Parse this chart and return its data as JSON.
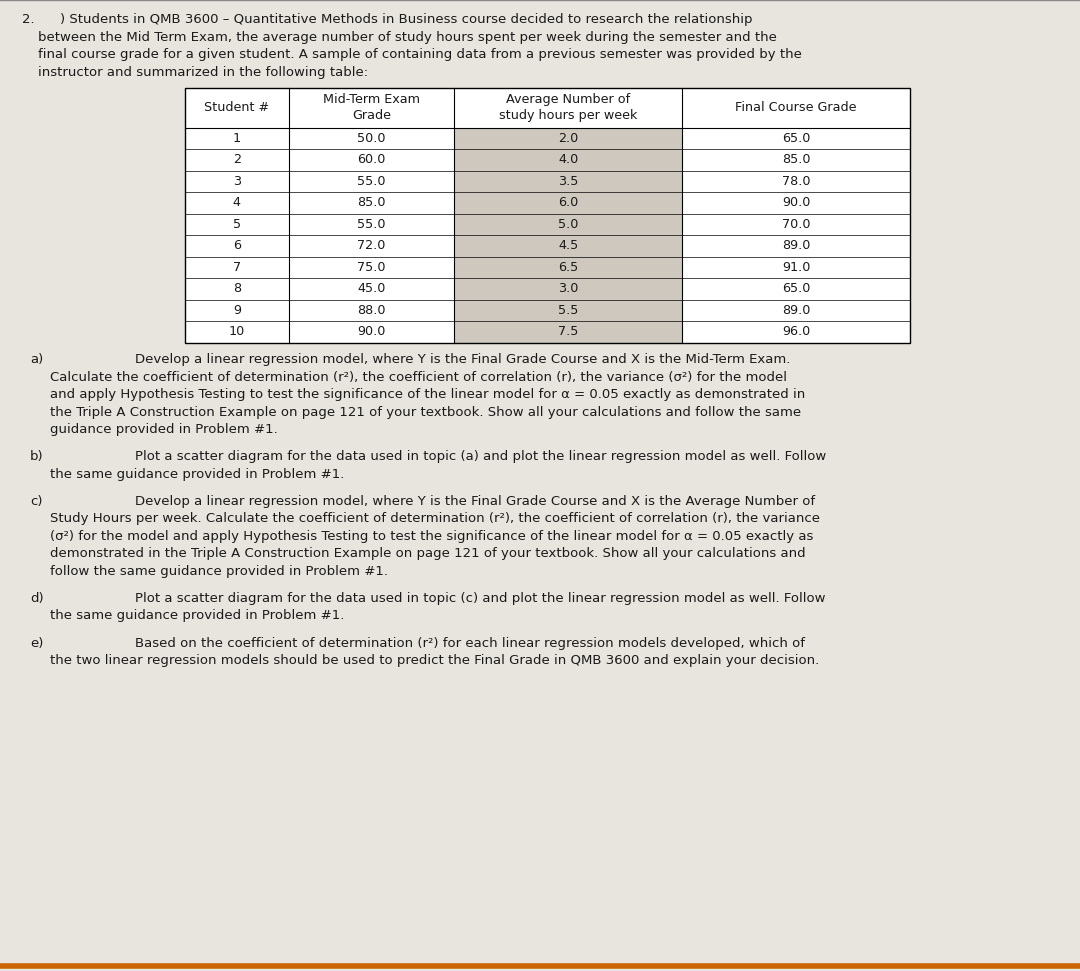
{
  "problem_number": "2.",
  "intro_line1": ") Students in QMB 3600 – Quantitative Methods in Business course decided to research the relationship",
  "intro_lines": [
    "between the Mid Term Exam, the average number of study hours spent per week during the semester and the",
    "final course grade for a given student. A sample of containing data from a previous semester was provided by the",
    "instructor and summarized in the following table:"
  ],
  "table_headers": [
    "Student #",
    "Mid-Term Exam\nGrade",
    "Average Number of\nstudy hours per week",
    "Final Course Grade"
  ],
  "table_data": [
    [
      "1",
      "50.0",
      "2.0",
      "65.0"
    ],
    [
      "2",
      "60.0",
      "4.0",
      "85.0"
    ],
    [
      "3",
      "55.0",
      "3.5",
      "78.0"
    ],
    [
      "4",
      "85.0",
      "6.0",
      "90.0"
    ],
    [
      "5",
      "55.0",
      "5.0",
      "70.0"
    ],
    [
      "6",
      "72.0",
      "4.5",
      "89.0"
    ],
    [
      "7",
      "75.0",
      "6.5",
      "91.0"
    ],
    [
      "8",
      "45.0",
      "3.0",
      "65.0"
    ],
    [
      "9",
      "88.0",
      "5.5",
      "89.0"
    ],
    [
      "10",
      "90.0",
      "7.5",
      "96.0"
    ]
  ],
  "part_a_label": "a)",
  "part_a_line1": "Develop a linear regression model, where Y is the Final Grade Course and X is the Mid-Term Exam.",
  "part_a_lines": [
    "Calculate the coefficient of determination (r²), the coefficient of correlation (r), the variance (σ²) for the model",
    "and apply Hypothesis Testing to test the significance of the linear model for α = 0.05 exactly as demonstrated in",
    "the Triple A Construction Example on page 121 of your textbook. Show all your calculations and follow the same",
    "guidance provided in Problem #1."
  ],
  "part_b_label": "b)",
  "part_b_line1": "Plot a scatter diagram for the data used in topic (a) and plot the linear regression model as well. Follow",
  "part_b_lines": [
    "the same guidance provided in Problem #1."
  ],
  "part_c_label": "c)",
  "part_c_line1": "Develop a linear regression model, where Y is the Final Grade Course and X is the Average Number of",
  "part_c_lines": [
    "Study Hours per week. Calculate the coefficient of determination (r²), the coefficient of correlation (r), the variance",
    "(σ²) for the model and apply Hypothesis Testing to test the significance of the linear model for α = 0.05 exactly as",
    "demonstrated in the Triple A Construction Example on page 121 of your textbook. Show all your calculations and",
    "follow the same guidance provided in Problem #1."
  ],
  "part_d_label": "d)",
  "part_d_line1": "Plot a scatter diagram for the data used in topic (c) and plot the linear regression model as well. Follow",
  "part_d_lines": [
    "the same guidance provided in Problem #1."
  ],
  "part_e_label": "e)",
  "part_e_line1": "Based on the coefficient of determination (r²) for each linear regression models developed, which of",
  "part_e_lines": [
    "the two linear regression models should be used to predict the Final Grade in QMB 3600 and explain your decision."
  ],
  "bg_color": "#e8e4de",
  "text_color": "#1a1a1a",
  "table_bg": "#ffffff",
  "table_inner_bg": "#ddd8cf"
}
